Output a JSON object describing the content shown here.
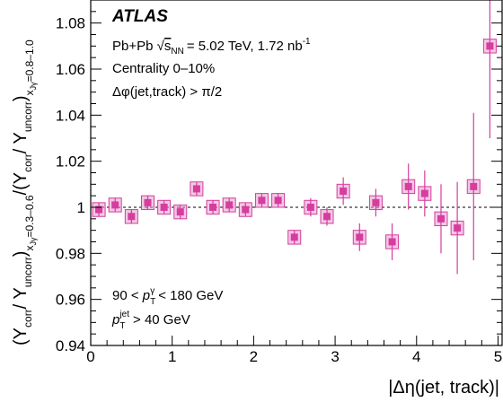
{
  "chart_data": {
    "type": "scatter",
    "title": "",
    "xlabel": "|Δη(jet, track)|",
    "ylabel": "(Y_corr / Y_uncorr)_{xJγ=0.3–0.6} / (Y_corr / Y_uncorr)_{xJγ=0.8–1.0}",
    "ylabel_parts": {
      "open": "(",
      "y_corr": "Y",
      "corr_sub": "corr",
      "slash": "/ ",
      "y_uncorr": "Y",
      "uncorr_sub": "uncorr",
      "close": ")",
      "x_sym": "x",
      "jg_sub": "Jγ",
      "low_range": "=0.3–0.6",
      "divider": "/",
      "high_range": "=0.8–1.0"
    },
    "xlim": [
      0,
      5.05
    ],
    "ylim": [
      0.94,
      1.09
    ],
    "x_ticks": [
      0,
      1,
      2,
      3,
      4,
      5
    ],
    "y_ticks": [
      0.94,
      0.96,
      0.98,
      1,
      1.02,
      1.04,
      1.06,
      1.08
    ],
    "y_tick_labels": [
      "0.94",
      "0.96",
      "0.98",
      "1",
      "1.02",
      "1.04",
      "1.06",
      "1.08"
    ],
    "reference_line": 1.0,
    "annotations": {
      "experiment": "ATLAS",
      "collision": "Pb+Pb",
      "sqrt_symbol": "√",
      "snn": "s",
      "snn_sub": "NN",
      "energy": "= 5.02 TeV, 1.72 nb",
      "lumi_exp": "-1",
      "centrality": "Centrality 0–10%",
      "dphi_cut": "Δφ(jet,track) > π/2",
      "photon_pt_low": "90 <",
      "photon_pt_var": "p",
      "photon_pt_sub": "T",
      "photon_pt_sup": "γ",
      "photon_pt_high": "< 180 GeV",
      "jet_pt_var": "p",
      "jet_pt_sub": "T",
      "jet_pt_sup": "jet",
      "jet_pt_cut": "> 40 GeV"
    },
    "series": [
      {
        "color": "#d63d9e",
        "box_color": "#e89bd0",
        "points": [
          {
            "x": 0.1,
            "y": 0.999,
            "stat": 0.003,
            "sys": 0.003
          },
          {
            "x": 0.3,
            "y": 1.001,
            "stat": 0.003,
            "sys": 0.003
          },
          {
            "x": 0.5,
            "y": 0.996,
            "stat": 0.003,
            "sys": 0.003
          },
          {
            "x": 0.7,
            "y": 1.002,
            "stat": 0.003,
            "sys": 0.003
          },
          {
            "x": 0.9,
            "y": 1.0,
            "stat": 0.003,
            "sys": 0.003
          },
          {
            "x": 1.1,
            "y": 0.998,
            "stat": 0.003,
            "sys": 0.003
          },
          {
            "x": 1.3,
            "y": 1.008,
            "stat": 0.003,
            "sys": 0.003
          },
          {
            "x": 1.5,
            "y": 1.0,
            "stat": 0.003,
            "sys": 0.003
          },
          {
            "x": 1.7,
            "y": 1.001,
            "stat": 0.003,
            "sys": 0.003
          },
          {
            "x": 1.9,
            "y": 0.999,
            "stat": 0.003,
            "sys": 0.003
          },
          {
            "x": 2.1,
            "y": 1.003,
            "stat": 0.003,
            "sys": 0.003
          },
          {
            "x": 2.3,
            "y": 1.003,
            "stat": 0.003,
            "sys": 0.003
          },
          {
            "x": 2.5,
            "y": 0.987,
            "stat": 0.003,
            "sys": 0.003
          },
          {
            "x": 2.7,
            "y": 1.0,
            "stat": 0.004,
            "sys": 0.003
          },
          {
            "x": 2.9,
            "y": 0.996,
            "stat": 0.004,
            "sys": 0.003
          },
          {
            "x": 3.1,
            "y": 1.007,
            "stat": 0.006,
            "sys": 0.003
          },
          {
            "x": 3.3,
            "y": 0.987,
            "stat": 0.006,
            "sys": 0.003
          },
          {
            "x": 3.5,
            "y": 1.002,
            "stat": 0.006,
            "sys": 0.003
          },
          {
            "x": 3.7,
            "y": 0.985,
            "stat": 0.008,
            "sys": 0.003
          },
          {
            "x": 3.9,
            "y": 1.009,
            "stat": 0.01,
            "sys": 0.003
          },
          {
            "x": 4.1,
            "y": 1.006,
            "stat": 0.01,
            "sys": 0.003
          },
          {
            "x": 4.3,
            "y": 0.995,
            "stat": 0.015,
            "sys": 0.003
          },
          {
            "x": 4.5,
            "y": 0.991,
            "stat": 0.02,
            "sys": 0.003
          },
          {
            "x": 4.7,
            "y": 1.009,
            "stat": 0.032,
            "sys": 0.003
          },
          {
            "x": 4.9,
            "y": 1.07,
            "stat": 0.04,
            "sys": 0.003
          }
        ]
      }
    ]
  }
}
